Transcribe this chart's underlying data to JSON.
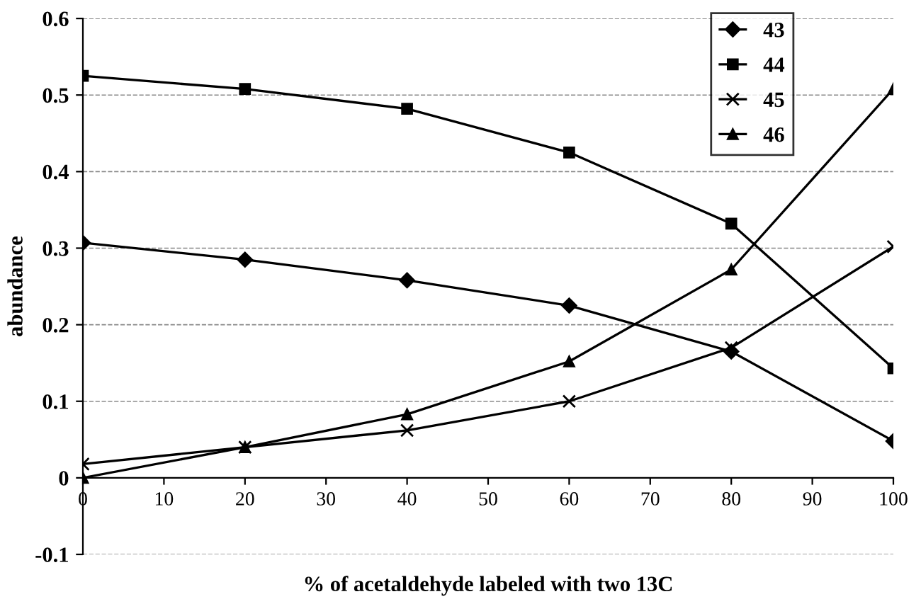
{
  "chart_data": {
    "type": "line",
    "xlabel": "% of acetaldehyde labeled with two 13C",
    "ylabel": "abundance",
    "x": [
      0,
      20,
      40,
      60,
      80,
      100
    ],
    "series": [
      {
        "name": "43",
        "color": "#000000",
        "marker": "diamond",
        "values": [
          0.307,
          0.285,
          0.258,
          0.225,
          0.165,
          0.048
        ]
      },
      {
        "name": "44",
        "color": "#000000",
        "marker": "square",
        "values": [
          0.525,
          0.508,
          0.482,
          0.425,
          0.332,
          0.143
        ]
      },
      {
        "name": "45",
        "color": "#000000",
        "marker": "cross",
        "values": [
          0.018,
          0.04,
          0.062,
          0.1,
          0.17,
          0.302
        ]
      },
      {
        "name": "46",
        "color": "#000000",
        "marker": "triangle",
        "values": [
          0.0,
          0.04,
          0.083,
          0.152,
          0.272,
          0.508
        ]
      }
    ],
    "xlim": [
      0,
      100
    ],
    "xticks": [
      0,
      10,
      20,
      30,
      40,
      50,
      60,
      70,
      80,
      90,
      100
    ],
    "ylim": [
      -0.1,
      0.6
    ],
    "yticks": [
      -0.1,
      0,
      0.1,
      0.2,
      0.3,
      0.4,
      0.5,
      0.6
    ],
    "grid": "y",
    "legend": "top right",
    "line_style": "solid"
  }
}
